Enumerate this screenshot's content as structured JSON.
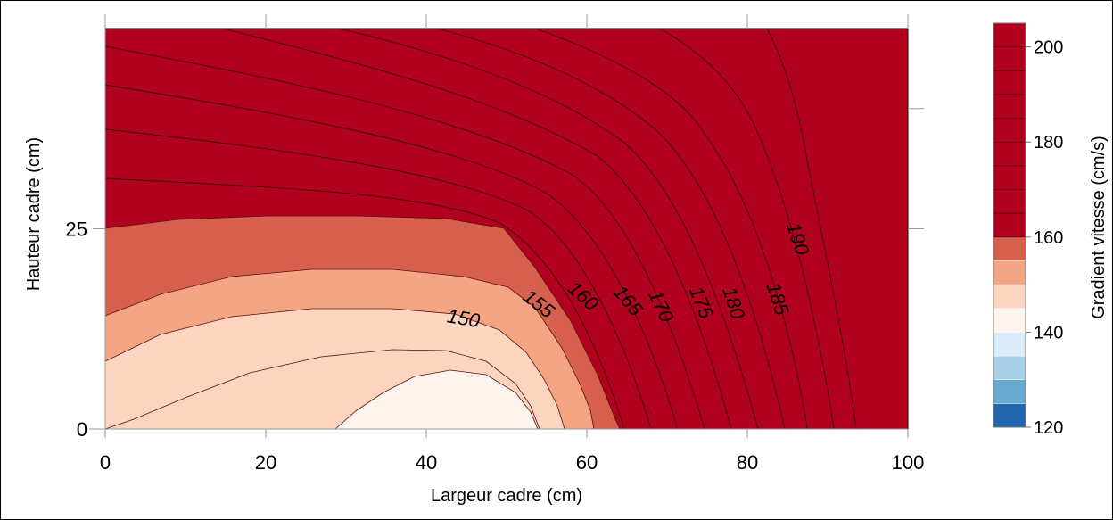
{
  "chart_data": {
    "type": "contour",
    "title": "",
    "xlabel": "Largeur cadre (cm)",
    "ylabel": "Hauteur cadre (cm)",
    "xlim": [
      0,
      100
    ],
    "ylim": [
      0,
      50
    ],
    "x_ticks": [
      0,
      20,
      40,
      60,
      80,
      100
    ],
    "y_ticks": [
      0,
      25
    ],
    "x_tick_labels": [
      "0",
      "20",
      "40",
      "60",
      "80",
      "100"
    ],
    "y_tick_labels": [
      "0",
      "25"
    ],
    "contour_levels": [
      150,
      155,
      160,
      165,
      170,
      175,
      180,
      185,
      190
    ],
    "contour_labels": [
      {
        "text": "150",
        "x": 44.5,
        "y": 13.0,
        "angle": 10
      },
      {
        "text": "155",
        "x": 53.5,
        "y": 15.0,
        "angle": 38
      },
      {
        "text": "160",
        "x": 59.0,
        "y": 16.0,
        "angle": 42
      },
      {
        "text": "165",
        "x": 64.5,
        "y": 15.5,
        "angle": 50
      },
      {
        "text": "170",
        "x": 68.5,
        "y": 15.0,
        "angle": 65
      },
      {
        "text": "175",
        "x": 73.5,
        "y": 15.5,
        "angle": 68
      },
      {
        "text": "180",
        "x": 77.5,
        "y": 15.5,
        "angle": 72
      },
      {
        "text": "185",
        "x": 83.0,
        "y": 16.0,
        "angle": 72
      },
      {
        "text": "190",
        "x": 85.5,
        "y": 23.5,
        "angle": 72
      }
    ],
    "filled_regions": [
      {
        "range": [
          140,
          145
        ],
        "color": "#fdf4ee"
      },
      {
        "range": [
          145,
          150
        ],
        "color": "#fcd5c0"
      },
      {
        "range": [
          150,
          155
        ],
        "color": "#f4a583"
      },
      {
        "range": [
          155,
          160
        ],
        "color": "#d6604d"
      },
      {
        "range": [
          160,
          205
        ],
        "color": "#b2001f"
      }
    ],
    "colorbar": {
      "label": "Gradient vitesse (cm/s)",
      "range": [
        120,
        205
      ],
      "tick_values": [
        120,
        140,
        160,
        180,
        200
      ],
      "tick_labels": [
        "120",
        "140",
        "160",
        "180",
        "200"
      ],
      "bands": [
        {
          "from": 120,
          "to": 125,
          "color": "#2166ac"
        },
        {
          "from": 125,
          "to": 130,
          "color": "#67a9cf"
        },
        {
          "from": 130,
          "to": 135,
          "color": "#a7cfe6"
        },
        {
          "from": 135,
          "to": 140,
          "color": "#d9ebf6"
        },
        {
          "from": 140,
          "to": 145,
          "color": "#fdf4ee"
        },
        {
          "from": 145,
          "to": 150,
          "color": "#fcd5c0"
        },
        {
          "from": 150,
          "to": 155,
          "color": "#f4a583"
        },
        {
          "from": 155,
          "to": 160,
          "color": "#d6604d"
        },
        {
          "from": 160,
          "to": 205,
          "color": "#b2001f"
        }
      ],
      "minor_lines_from": 160,
      "minor_lines_step": 5
    },
    "grid": false,
    "legend": "colorbar-right"
  }
}
